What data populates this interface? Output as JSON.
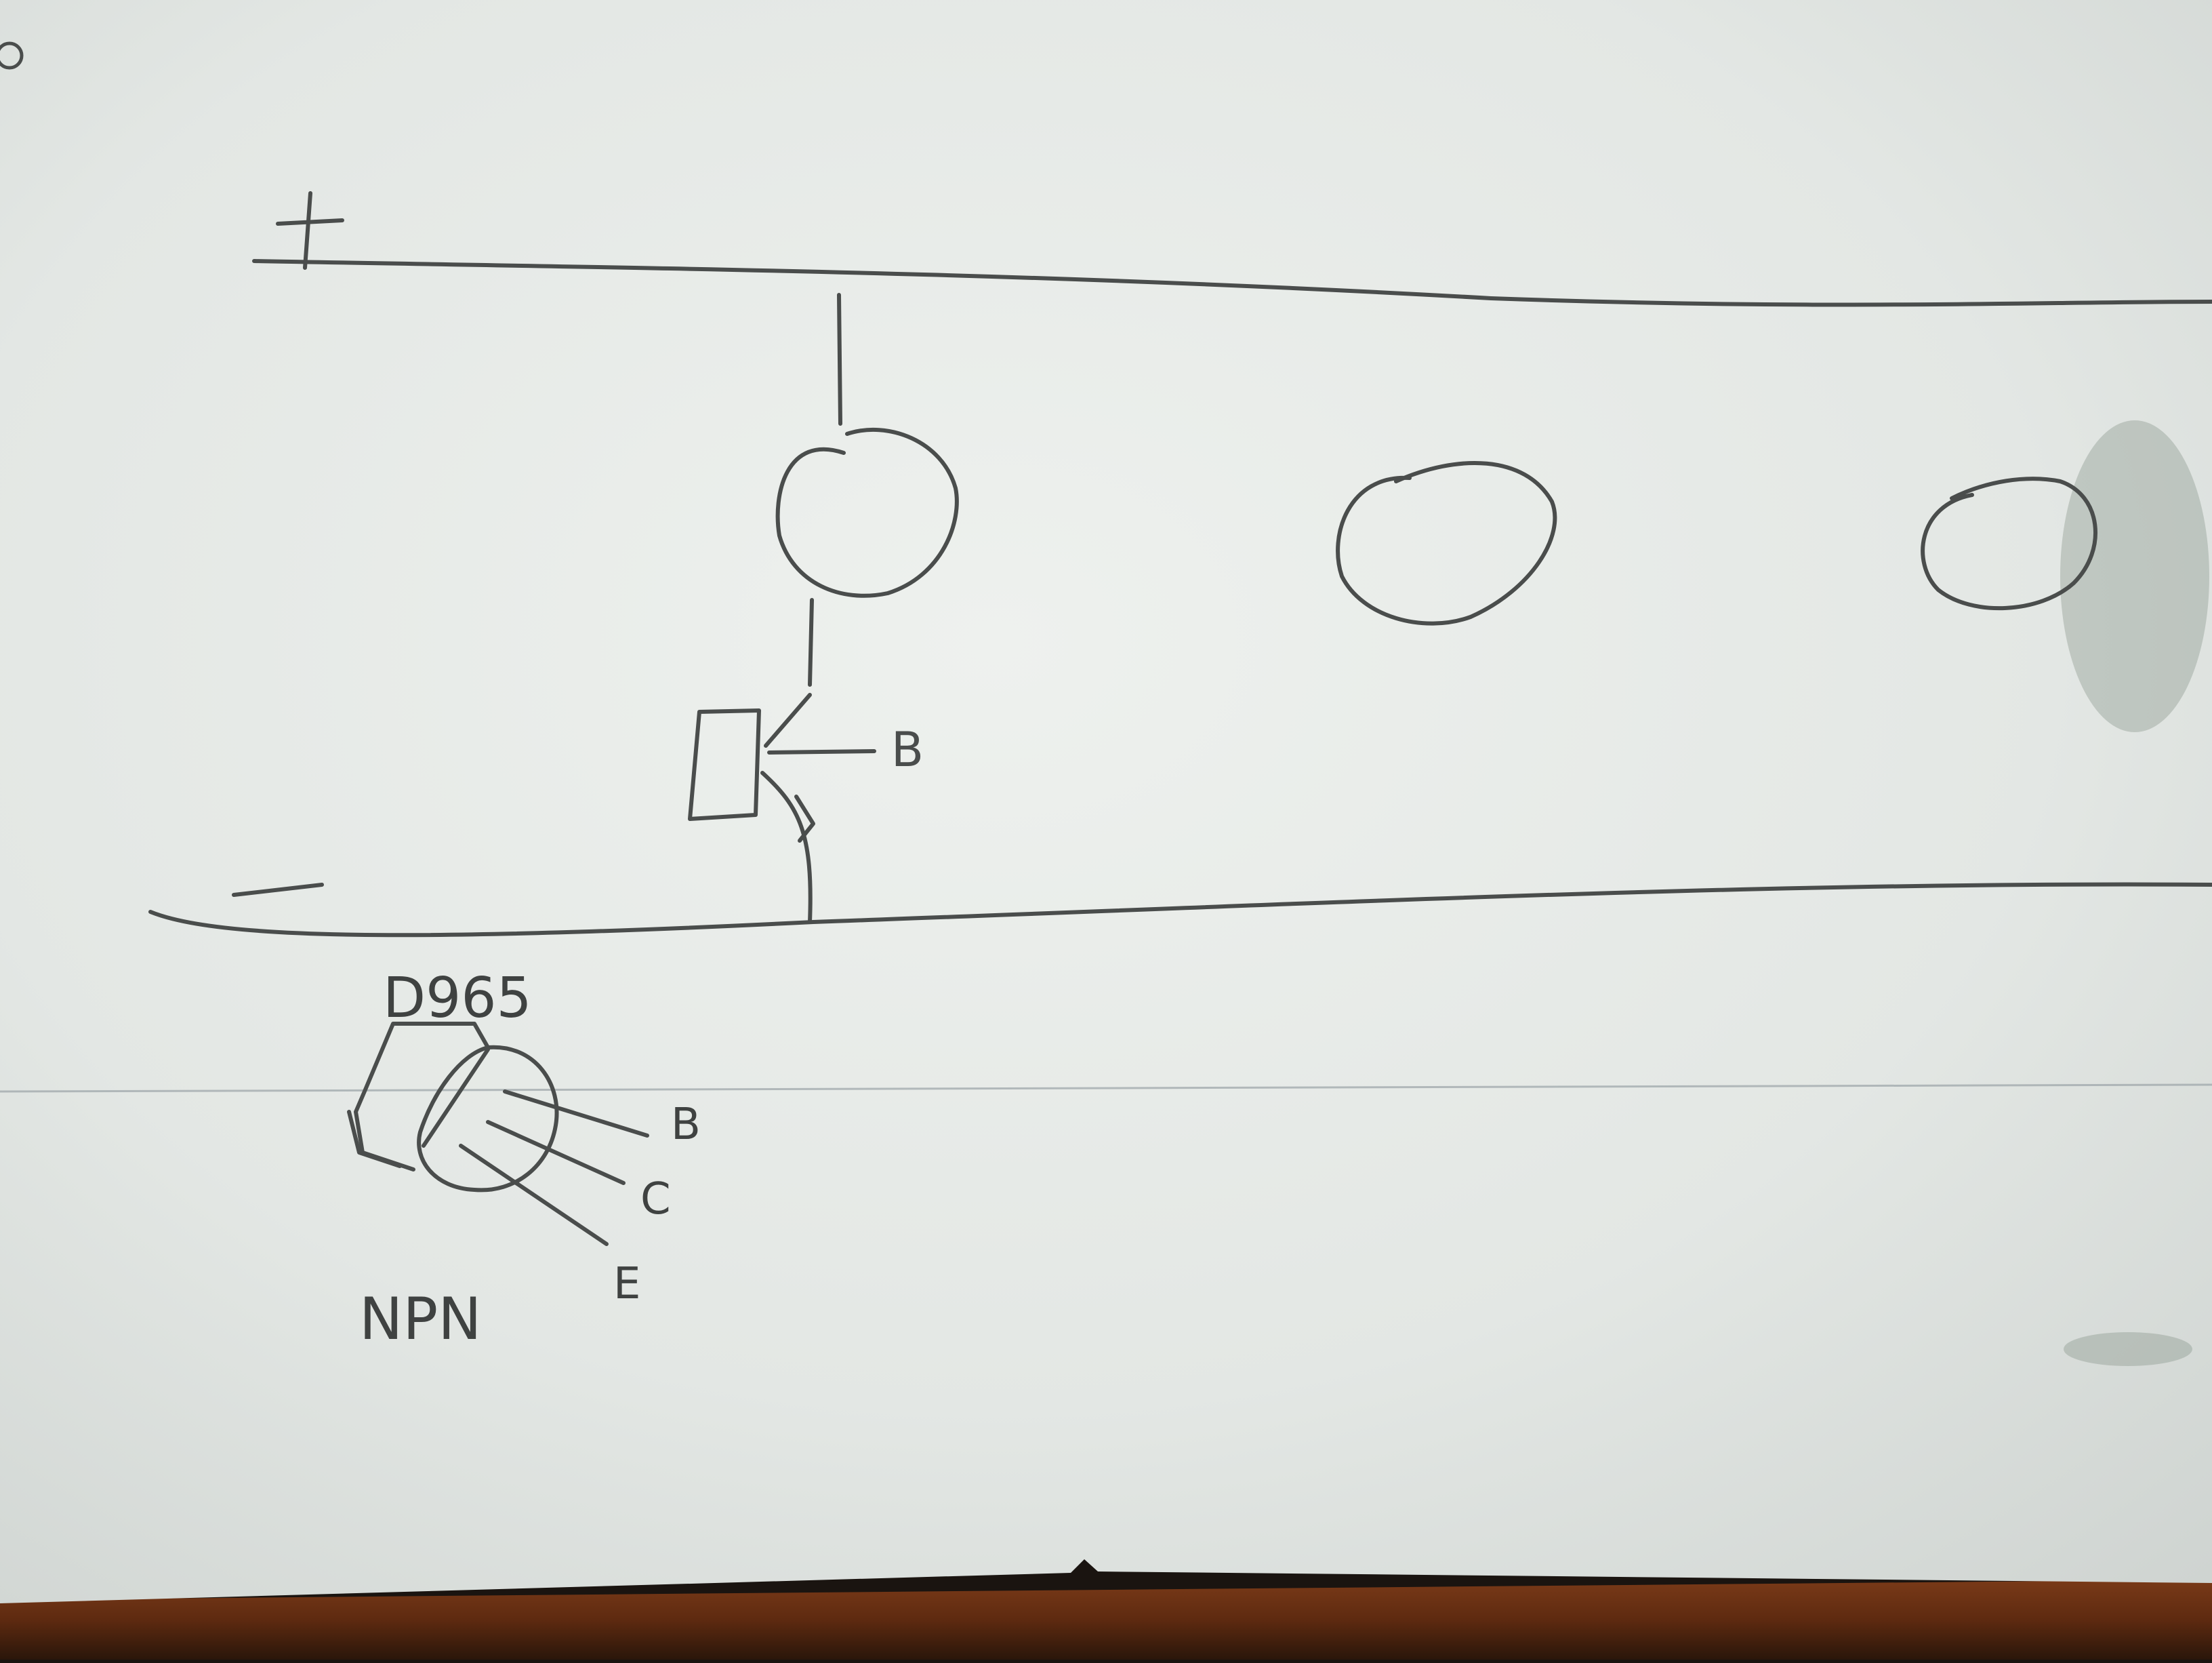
{
  "diagram": {
    "labels": {
      "positive_rail": "+",
      "negative_rail": "-",
      "base_terminal": "B",
      "part_number": "D965",
      "pin_b": "B",
      "pin_c": "C",
      "pin_e": "E",
      "transistor_type": "NPN"
    }
  },
  "colors": {
    "paper": "#e6e9e6",
    "pencil": "#4a4d4c",
    "desk_edge": "#6e3518",
    "background": "#1a1410"
  }
}
